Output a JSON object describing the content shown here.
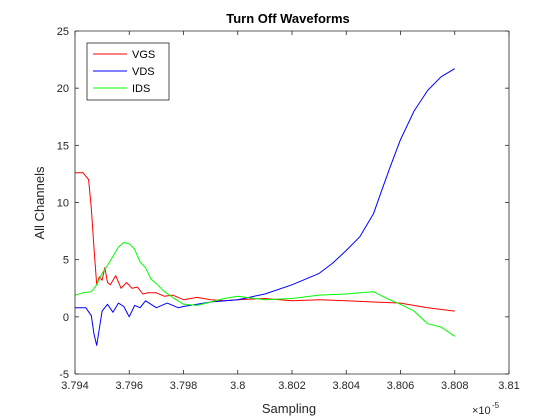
{
  "chart_data": {
    "type": "line",
    "title": "Turn Off Waveforms",
    "xlabel": "Sampling",
    "ylabel": "All Channels",
    "x_exponent_label": "×10",
    "x_exponent_power": "-5",
    "xlim": [
      3.794,
      3.81
    ],
    "ylim": [
      -5,
      25
    ],
    "x_tick_values": [
      3.794,
      3.796,
      3.798,
      3.8,
      3.802,
      3.804,
      3.806,
      3.808,
      3.81
    ],
    "x_tick_labels": [
      "3.794",
      "3.796",
      "3.798",
      "3.8",
      "3.802",
      "3.804",
      "3.806",
      "3.808",
      "3.81"
    ],
    "y_tick_values": [
      -5,
      0,
      5,
      10,
      15,
      20,
      25
    ],
    "y_tick_labels": [
      "-5",
      "0",
      "5",
      "10",
      "15",
      "20",
      "25"
    ],
    "grid": false,
    "legend_position": "top-left",
    "series": [
      {
        "name": "VGS",
        "color": "#ff0000",
        "x": [
          3.794,
          3.7943,
          3.7945,
          3.7946,
          3.7947,
          3.7948,
          3.7949,
          3.795,
          3.7951,
          3.7952,
          3.7953,
          3.7955,
          3.7957,
          3.7959,
          3.7961,
          3.7963,
          3.7965,
          3.7967,
          3.797,
          3.7973,
          3.7976,
          3.798,
          3.7985,
          3.799,
          3.7995,
          3.8,
          3.801,
          3.802,
          3.803,
          3.804,
          3.805,
          3.806,
          3.807,
          3.808
        ],
        "y": [
          12.6,
          12.6,
          12.0,
          9.5,
          6.0,
          2.8,
          3.5,
          3.2,
          4.3,
          3.0,
          2.8,
          3.6,
          2.5,
          3.0,
          2.5,
          2.6,
          2.0,
          2.1,
          2.1,
          1.8,
          1.9,
          1.5,
          1.7,
          1.5,
          1.4,
          1.5,
          1.6,
          1.4,
          1.5,
          1.4,
          1.3,
          1.2,
          0.8,
          0.5
        ]
      },
      {
        "name": "VDS",
        "color": "#0000ff",
        "x": [
          3.794,
          3.7944,
          3.7946,
          3.7947,
          3.7948,
          3.7949,
          3.795,
          3.7952,
          3.7954,
          3.7956,
          3.7958,
          3.796,
          3.7962,
          3.7964,
          3.7966,
          3.797,
          3.7974,
          3.7978,
          3.798,
          3.799,
          3.8,
          3.801,
          3.802,
          3.803,
          3.8035,
          3.804,
          3.8045,
          3.805,
          3.8053,
          3.8056,
          3.806,
          3.8065,
          3.807,
          3.8075,
          3.808
        ],
        "y": [
          0.8,
          0.8,
          0.1,
          -1.5,
          -2.5,
          -1.0,
          0.5,
          1.1,
          0.4,
          1.2,
          0.9,
          0.0,
          1.0,
          0.8,
          1.4,
          0.8,
          1.2,
          0.8,
          0.9,
          1.3,
          1.5,
          2.0,
          2.8,
          3.8,
          4.7,
          5.8,
          7.0,
          9.0,
          11.0,
          13.0,
          15.5,
          18.0,
          19.8,
          21.0,
          21.7
        ]
      },
      {
        "name": "IDS",
        "color": "#00ff00",
        "x": [
          3.794,
          3.7943,
          3.7946,
          3.7948,
          3.795,
          3.7952,
          3.7954,
          3.7956,
          3.7958,
          3.796,
          3.7962,
          3.7964,
          3.7966,
          3.7968,
          3.797,
          3.7973,
          3.7976,
          3.798,
          3.7985,
          3.799,
          3.7995,
          3.8,
          3.801,
          3.802,
          3.803,
          3.804,
          3.8045,
          3.805,
          3.8055,
          3.806,
          3.8065,
          3.807,
          3.8075,
          3.808
        ],
        "y": [
          1.9,
          2.1,
          2.2,
          2.8,
          3.8,
          4.5,
          5.3,
          6.1,
          6.5,
          6.4,
          5.9,
          4.8,
          4.3,
          3.3,
          2.9,
          2.2,
          1.7,
          1.1,
          1.0,
          1.3,
          1.6,
          1.8,
          1.5,
          1.6,
          1.9,
          2.0,
          2.1,
          2.2,
          1.6,
          1.1,
          0.5,
          -0.6,
          -0.9,
          -1.7
        ]
      }
    ]
  }
}
